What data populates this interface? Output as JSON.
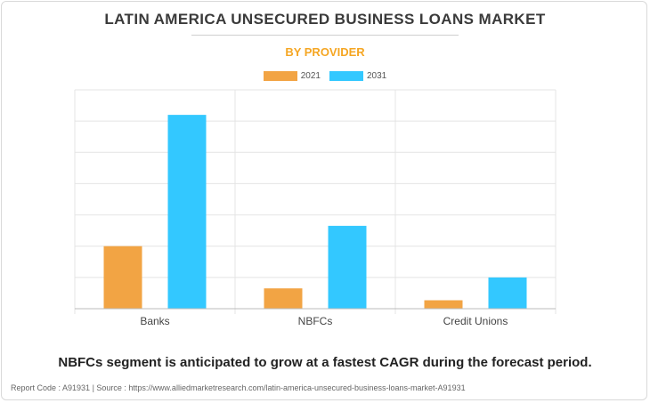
{
  "title": "LATIN AMERICA UNSECURED BUSINESS LOANS MARKET",
  "subtitle": "BY PROVIDER",
  "footnote": "NBFCs segment is anticipated to grow at a fastest CAGR during the forecast period.",
  "report_line": "Report Code : A91931  |  Source : https://www.alliedmarketresearch.com/latin-america-unsecured-business-loans-market-A91931",
  "colors": {
    "s2021": "#f2a444",
    "s2031": "#33c8ff",
    "grid": "#e4e4e4",
    "axis": "#bbbbbb"
  },
  "chart_data": {
    "type": "bar",
    "title": "LATIN AMERICA UNSECURED BUSINESS LOANS MARKET",
    "subtitle": "BY PROVIDER",
    "categories": [
      "Banks",
      "NBFCs",
      "Credit Unions"
    ],
    "series": [
      {
        "name": "2021",
        "values": [
          2.0,
          0.65,
          0.27
        ]
      },
      {
        "name": "2031",
        "values": [
          6.2,
          2.65,
          1.0
        ]
      }
    ],
    "xlabel": "",
    "ylabel": "",
    "ylim": [
      0,
      7
    ],
    "y_tick_labels_shown": false,
    "grid": true,
    "legend_position": "top-center"
  }
}
